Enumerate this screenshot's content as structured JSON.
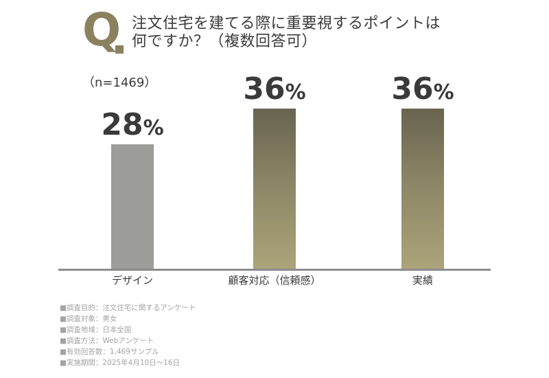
{
  "header": {
    "q_letter": "Q",
    "title_line1": "注文住宅を建てる際に重要視するポイントは",
    "title_line2": "何ですか？（複数回答可）"
  },
  "colors": {
    "accent": "#8a815f",
    "gray_bar": "#9c9c9b",
    "gold_bar_top": "#686450",
    "gold_bar_bottom": "#aca47a",
    "text": "#3a3a3a",
    "notes": "#a3a3a3"
  },
  "chart_data": {
    "type": "bar",
    "title": "注文住宅を建てる際に重要視するポイントは何ですか？（複数回答可）",
    "sample_size": "（n=1469）",
    "categories": [
      "デザイン",
      "顧客対応（信頼感）",
      "実績"
    ],
    "values": [
      28,
      36,
      36
    ],
    "value_unit": "%",
    "ylim": [
      0,
      50
    ],
    "xlabel": "",
    "ylabel": "",
    "grid": false,
    "legend": "none"
  },
  "notes": [
    "■調査目的：注文住宅に関するアンケート",
    "■調査対象：男女",
    "■調査地域：日本全国",
    "■調査方法：Webアンケート",
    "■有効回答数：1,469サンプル",
    "■実施期間：2025年4月10日～16日"
  ]
}
